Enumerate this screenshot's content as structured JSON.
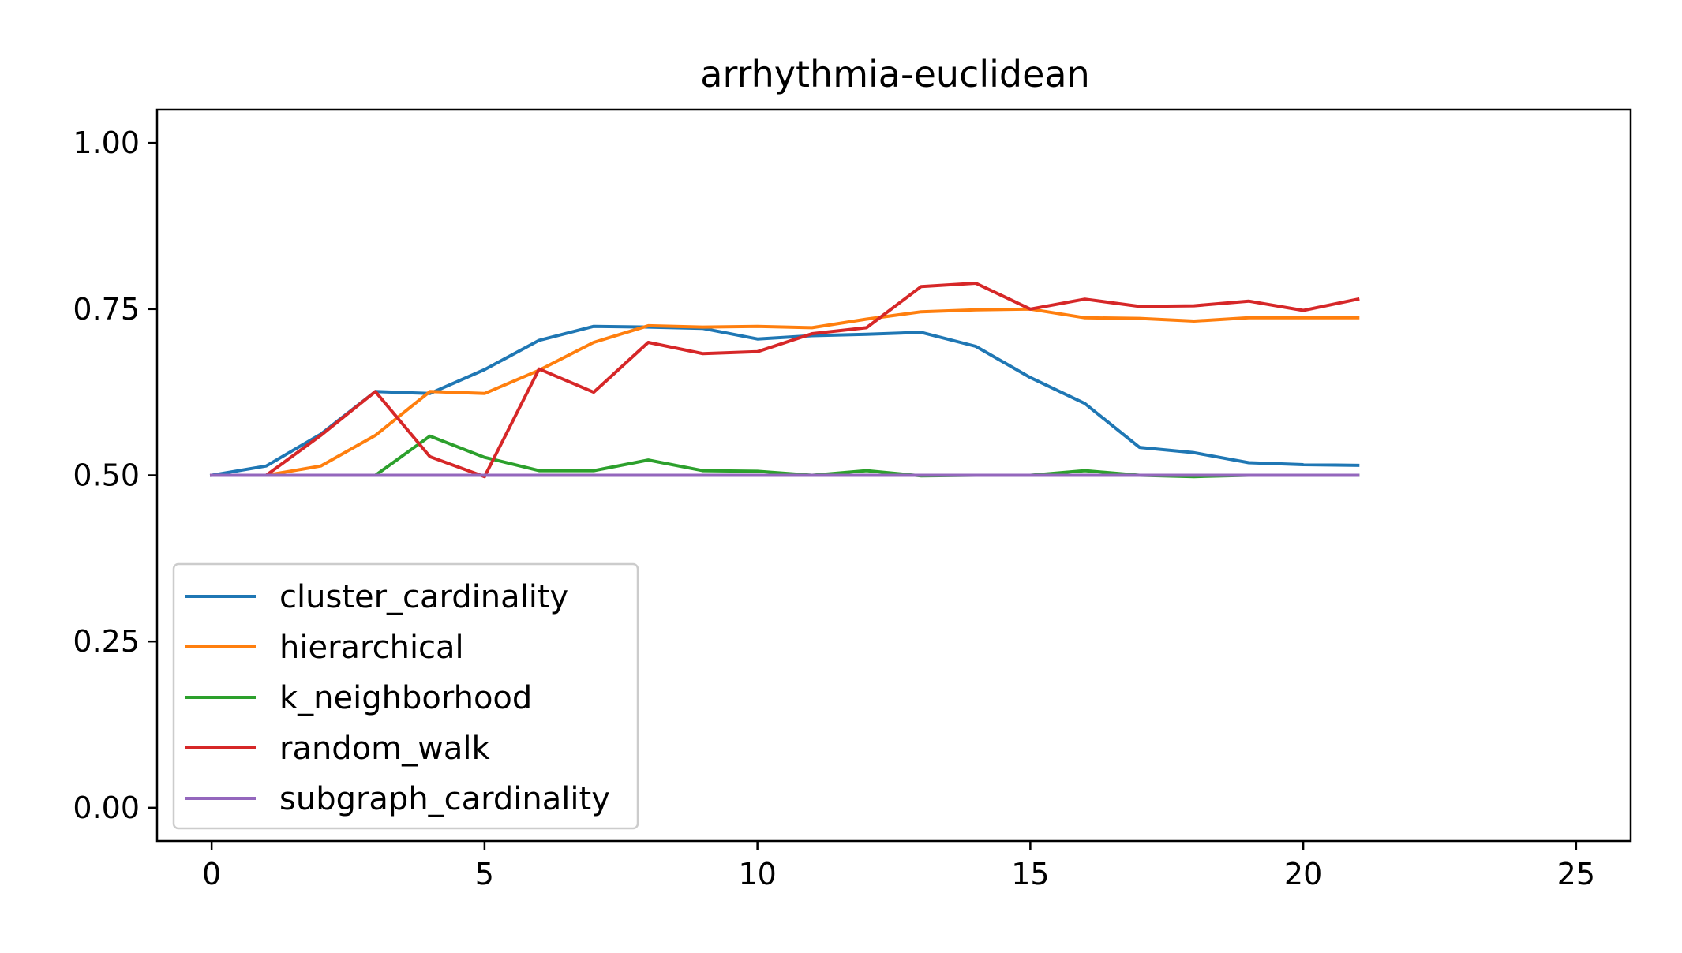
{
  "chart_data": {
    "type": "line",
    "title": "arrhythmia-euclidean",
    "xlabel": "",
    "ylabel": "",
    "xlim": [
      -1,
      26
    ],
    "ylim": [
      -0.05,
      1.05
    ],
    "xticks": [
      0,
      5,
      10,
      15,
      20,
      25
    ],
    "xtick_labels": [
      "0",
      "5",
      "10",
      "15",
      "20",
      "25"
    ],
    "yticks": [
      0.0,
      0.25,
      0.5,
      0.75,
      1.0
    ],
    "ytick_labels": [
      "0.00",
      "0.25",
      "0.50",
      "0.75",
      "1.00"
    ],
    "grid": false,
    "legend_position": "lower-left",
    "x": [
      0,
      1,
      2,
      3,
      4,
      5,
      6,
      7,
      8,
      9,
      10,
      11,
      12,
      13,
      14,
      15,
      16,
      17,
      18,
      19,
      20,
      21
    ],
    "series": [
      {
        "name": "cluster_cardinality",
        "color": "#1f77b4",
        "values": [
          0.5,
          0.514,
          0.562,
          0.626,
          0.623,
          0.659,
          0.703,
          0.724,
          0.723,
          0.721,
          0.705,
          0.71,
          0.712,
          0.715,
          0.694,
          0.647,
          0.608,
          0.542,
          0.534,
          0.519,
          0.516,
          0.515
        ]
      },
      {
        "name": "hierarchical",
        "color": "#ff7f0e",
        "values": [
          0.5,
          0.5,
          0.514,
          0.56,
          0.626,
          0.623,
          0.658,
          0.7,
          0.725,
          0.723,
          0.724,
          0.722,
          0.735,
          0.746,
          0.749,
          0.75,
          0.737,
          0.736,
          0.732,
          0.737,
          0.737,
          0.737
        ]
      },
      {
        "name": "k_neighborhood",
        "color": "#2ca02c",
        "values": [
          0.5,
          0.5,
          0.5,
          0.5,
          0.559,
          0.527,
          0.507,
          0.507,
          0.523,
          0.507,
          0.506,
          0.5,
          0.507,
          0.499,
          0.5,
          0.5,
          0.507,
          0.5,
          0.498,
          0.5,
          0.5,
          0.5
        ]
      },
      {
        "name": "random_walk",
        "color": "#d62728",
        "values": [
          0.5,
          0.5,
          0.56,
          0.626,
          0.528,
          0.498,
          0.66,
          0.625,
          0.7,
          0.683,
          0.686,
          0.713,
          0.722,
          0.784,
          0.789,
          0.75,
          0.765,
          0.754,
          0.755,
          0.762,
          0.748,
          0.765
        ]
      },
      {
        "name": "subgraph_cardinality",
        "color": "#9467bd",
        "values": [
          0.5,
          0.5,
          0.5,
          0.5,
          0.5,
          0.5,
          0.5,
          0.5,
          0.5,
          0.5,
          0.5,
          0.5,
          0.5,
          0.5,
          0.5,
          0.5,
          0.5,
          0.5,
          0.5,
          0.5,
          0.5,
          0.5
        ]
      }
    ]
  }
}
